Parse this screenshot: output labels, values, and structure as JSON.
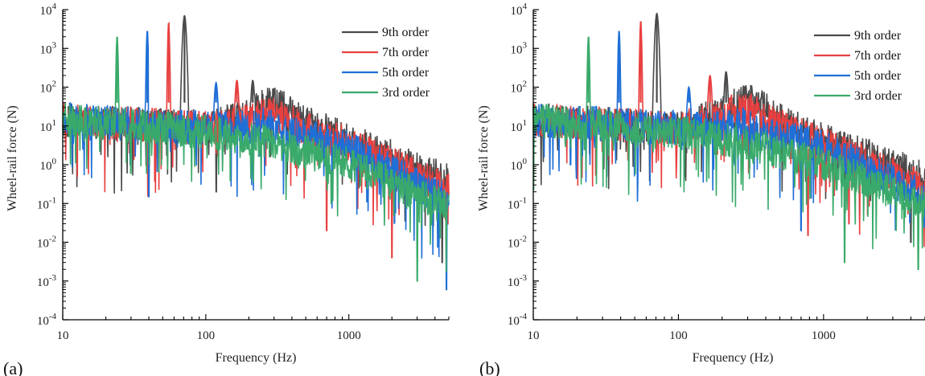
{
  "chart_data": [
    {
      "panel_label": "(a)",
      "type": "line",
      "xlabel": "Frequency (Hz)",
      "ylabel": "Wheel-rail force (N)",
      "xscale": "log",
      "yscale": "log",
      "xlim": [
        10,
        5000
      ],
      "ylim": [
        0.0001,
        10000
      ],
      "x_ticks": [
        10,
        100,
        1000
      ],
      "x_tick_labels": [
        "10",
        "100",
        "1000"
      ],
      "y_tick_exponents": [
        4,
        3,
        2,
        1,
        0,
        -1,
        -2,
        -3,
        -4
      ],
      "y_tick_base": "10",
      "grid": false,
      "legend_position": "top-right",
      "series": [
        {
          "name": "9th order",
          "color": "#4a4a4a",
          "peaks": [
            {
              "x": 71,
              "y": 7000
            },
            {
              "x": 213,
              "y": 150
            }
          ],
          "hump": {
            "x": 290,
            "y": 100
          },
          "envelope": [
            {
              "x": 10,
              "y": 40
            },
            {
              "x": 100,
              "y": 25
            },
            {
              "x": 300,
              "y": 80
            },
            {
              "x": 1000,
              "y": 12
            },
            {
              "x": 5000,
              "y": 1.2
            }
          ],
          "min_dips": [
            {
              "x": 118,
              "y": 0.2
            },
            {
              "x": 4500,
              "y": 0.003
            }
          ]
        },
        {
          "name": "7th order",
          "color": "#e84040",
          "peaks": [
            {
              "x": 55,
              "y": 4500
            },
            {
              "x": 165,
              "y": 150
            }
          ],
          "hump": {
            "x": 270,
            "y": 60
          },
          "envelope": [
            {
              "x": 10,
              "y": 40
            },
            {
              "x": 100,
              "y": 25
            },
            {
              "x": 300,
              "y": 50
            },
            {
              "x": 1000,
              "y": 10
            },
            {
              "x": 5000,
              "y": 0.6
            }
          ],
          "min_dips": [
            {
              "x": 700,
              "y": 0.02
            },
            {
              "x": 2000,
              "y": 0.004
            }
          ]
        },
        {
          "name": "5th order",
          "color": "#1f6fd6",
          "peaks": [
            {
              "x": 39,
              "y": 2800
            },
            {
              "x": 118,
              "y": 130
            }
          ],
          "hump": {
            "x": 250,
            "y": 30
          },
          "envelope": [
            {
              "x": 10,
              "y": 40
            },
            {
              "x": 100,
              "y": 25
            },
            {
              "x": 300,
              "y": 25
            },
            {
              "x": 1000,
              "y": 8
            },
            {
              "x": 5000,
              "y": 0.3
            }
          ],
          "min_dips": [
            {
              "x": 40,
              "y": 0.15
            },
            {
              "x": 4800,
              "y": 0.0006
            }
          ]
        },
        {
          "name": "3rd order",
          "color": "#3aaa6a",
          "peaks": [
            {
              "x": 24,
              "y": 2000
            }
          ],
          "hump": null,
          "envelope": [
            {
              "x": 10,
              "y": 40
            },
            {
              "x": 100,
              "y": 20
            },
            {
              "x": 300,
              "y": 10
            },
            {
              "x": 1000,
              "y": 3
            },
            {
              "x": 5000,
              "y": 0.2
            }
          ],
          "min_dips": [
            {
              "x": 30,
              "y": 0.6
            },
            {
              "x": 3000,
              "y": 0.001
            }
          ]
        }
      ]
    },
    {
      "panel_label": "(b)",
      "type": "line",
      "xlabel": "Frequency (Hz)",
      "ylabel": "Wheel-rail force (N)",
      "xscale": "log",
      "yscale": "log",
      "xlim": [
        10,
        5000
      ],
      "ylim": [
        0.0001,
        10000
      ],
      "x_ticks": [
        10,
        100,
        1000
      ],
      "x_tick_labels": [
        "10",
        "100",
        "1000"
      ],
      "y_tick_exponents": [
        4,
        3,
        2,
        1,
        0,
        -1,
        -2,
        -3,
        -4
      ],
      "y_tick_base": "10",
      "grid": false,
      "legend_position": "top-right",
      "series": [
        {
          "name": "9th order",
          "color": "#4a4a4a",
          "peaks": [
            {
              "x": 71,
              "y": 8000
            },
            {
              "x": 213,
              "y": 250
            }
          ],
          "hump": {
            "x": 300,
            "y": 130
          },
          "envelope": [
            {
              "x": 10,
              "y": 40
            },
            {
              "x": 100,
              "y": 25
            },
            {
              "x": 300,
              "y": 100
            },
            {
              "x": 1000,
              "y": 12
            },
            {
              "x": 5000,
              "y": 1.3
            }
          ],
          "min_dips": [
            {
              "x": 20,
              "y": 5
            },
            {
              "x": 4000,
              "y": 0.01
            }
          ]
        },
        {
          "name": "7th order",
          "color": "#e84040",
          "peaks": [
            {
              "x": 55,
              "y": 5000
            },
            {
              "x": 165,
              "y": 200
            }
          ],
          "hump": {
            "x": 280,
            "y": 80
          },
          "envelope": [
            {
              "x": 10,
              "y": 40
            },
            {
              "x": 100,
              "y": 25
            },
            {
              "x": 300,
              "y": 60
            },
            {
              "x": 1000,
              "y": 10
            },
            {
              "x": 5000,
              "y": 0.7
            }
          ],
          "min_dips": [
            {
              "x": 780,
              "y": 0.015
            },
            {
              "x": 1500,
              "y": 0.03
            }
          ]
        },
        {
          "name": "5th order",
          "color": "#1f6fd6",
          "peaks": [
            {
              "x": 39,
              "y": 2800
            },
            {
              "x": 118,
              "y": 100
            }
          ],
          "hump": {
            "x": 250,
            "y": 35
          },
          "envelope": [
            {
              "x": 10,
              "y": 40
            },
            {
              "x": 100,
              "y": 25
            },
            {
              "x": 300,
              "y": 25
            },
            {
              "x": 1000,
              "y": 8
            },
            {
              "x": 5000,
              "y": 0.4
            }
          ],
          "min_dips": [
            {
              "x": 18,
              "y": 1
            },
            {
              "x": 700,
              "y": 0.02
            }
          ]
        },
        {
          "name": "3rd order",
          "color": "#3aaa6a",
          "peaks": [
            {
              "x": 24,
              "y": 2000
            }
          ],
          "hump": null,
          "envelope": [
            {
              "x": 10,
              "y": 40
            },
            {
              "x": 100,
              "y": 20
            },
            {
              "x": 300,
              "y": 10
            },
            {
              "x": 1000,
              "y": 3
            },
            {
              "x": 5000,
              "y": 0.25
            }
          ],
          "min_dips": [
            {
              "x": 1400,
              "y": 0.003
            },
            {
              "x": 4500,
              "y": 0.002
            }
          ]
        }
      ]
    }
  ]
}
